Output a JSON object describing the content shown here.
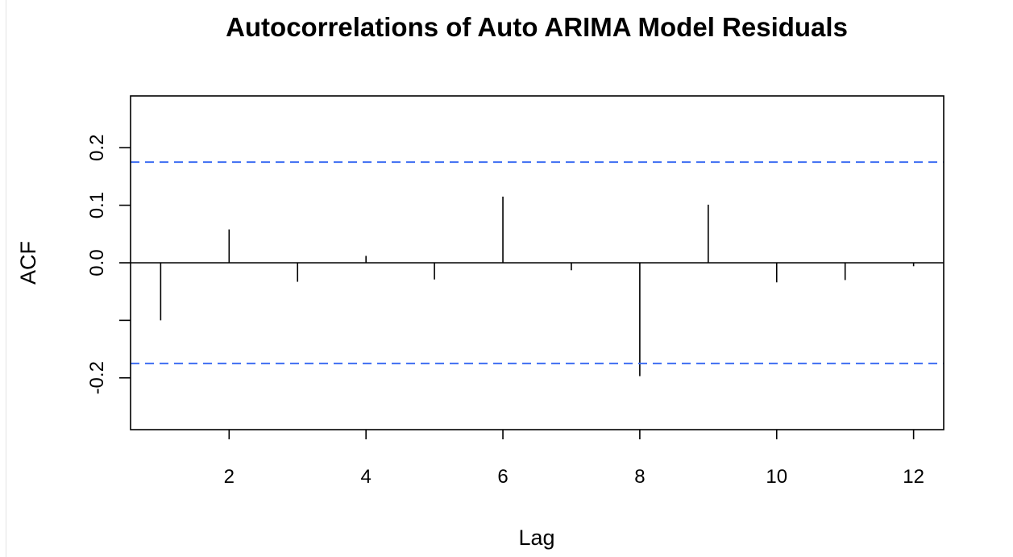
{
  "chart_data": {
    "type": "bar",
    "title": "Autocorrelations of Auto ARIMA Model Residuals",
    "xlabel": "Lag",
    "ylabel": "ACF",
    "x": [
      1,
      2,
      3,
      4,
      5,
      6,
      7,
      8,
      9,
      10,
      11,
      12
    ],
    "values": [
      -0.1,
      0.058,
      -0.033,
      0.012,
      -0.029,
      0.115,
      -0.013,
      -0.197,
      0.101,
      -0.034,
      -0.03,
      -0.006
    ],
    "xlim": [
      0.56,
      12.44
    ],
    "ylim": [
      -0.29,
      0.29
    ],
    "xticks": [
      2,
      4,
      6,
      8,
      10,
      12
    ],
    "xtick_labels": [
      "2",
      "4",
      "6",
      "8",
      "10",
      "12"
    ],
    "yticks": [
      -0.2,
      -0.1,
      0.0,
      0.1,
      0.2
    ],
    "ytick_labels": [
      "-0.2",
      "",
      "0.0",
      "0.1",
      "0.2"
    ],
    "confidence_bounds": [
      0.175,
      -0.175
    ],
    "confidence_color": "#3e6ef2",
    "bar_color": "#000000",
    "grid": false
  }
}
